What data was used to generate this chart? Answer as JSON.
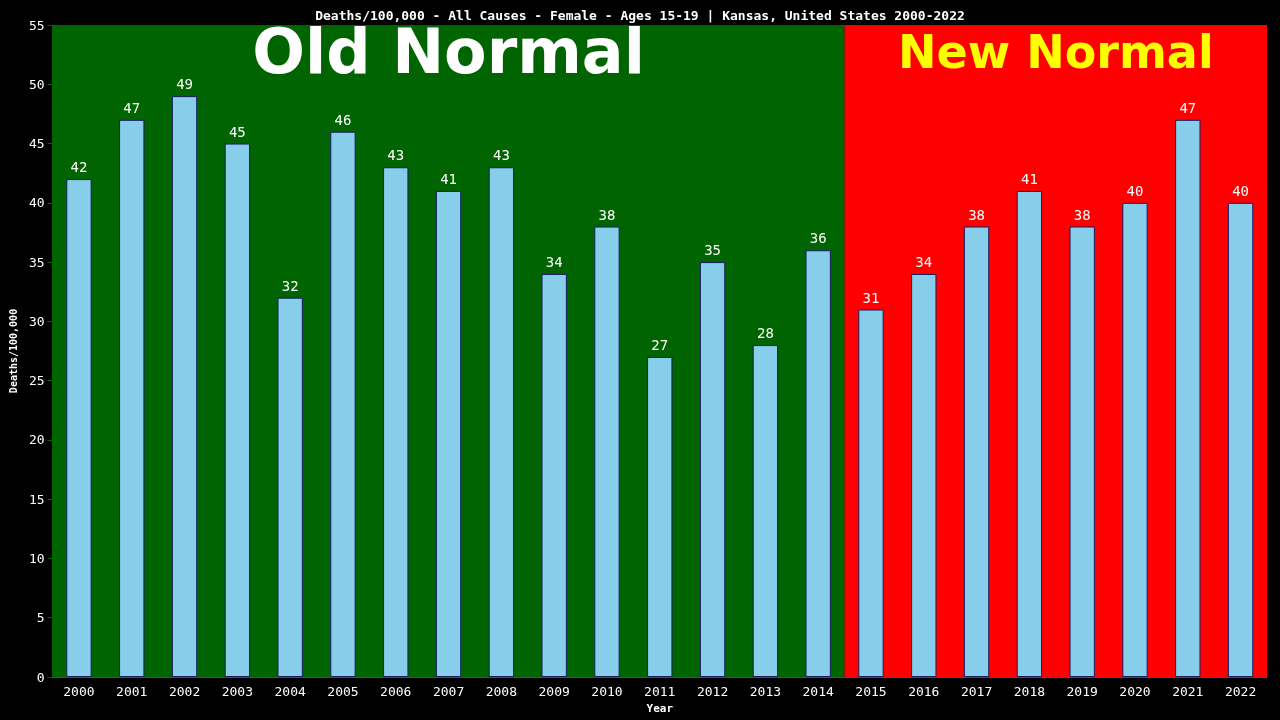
{
  "chart_data": {
    "type": "bar",
    "title": "Deaths/100,000 - All Causes - Female - Ages 15-19 | Kansas, United States 2000-2022",
    "xlabel": "Year",
    "ylabel": "Deaths/100,000",
    "categories": [
      "2000",
      "2001",
      "2002",
      "2003",
      "2004",
      "2005",
      "2006",
      "2007",
      "2008",
      "2009",
      "2010",
      "2011",
      "2012",
      "2013",
      "2014",
      "2015",
      "2016",
      "2017",
      "2018",
      "2019",
      "2020",
      "2021",
      "2022"
    ],
    "values": [
      42,
      47,
      49,
      45,
      32,
      46,
      43,
      41,
      43,
      34,
      38,
      27,
      35,
      28,
      36,
      31,
      34,
      38,
      41,
      38,
      40,
      47,
      40
    ],
    "color": "#87ceeb",
    "data_labels": true,
    "grid": false,
    "ylim": [
      0,
      55
    ],
    "yticks": [
      0,
      5,
      10,
      15,
      20,
      25,
      30,
      35,
      40,
      45,
      50,
      55
    ],
    "bands": [
      {
        "axis": "x",
        "from": "2000",
        "to": "2014",
        "label": "Old Normal",
        "color": "#006400"
      },
      {
        "axis": "x",
        "from": "2015",
        "to": "2022",
        "label": "New Normal",
        "color": "#ff0000"
      }
    ]
  }
}
